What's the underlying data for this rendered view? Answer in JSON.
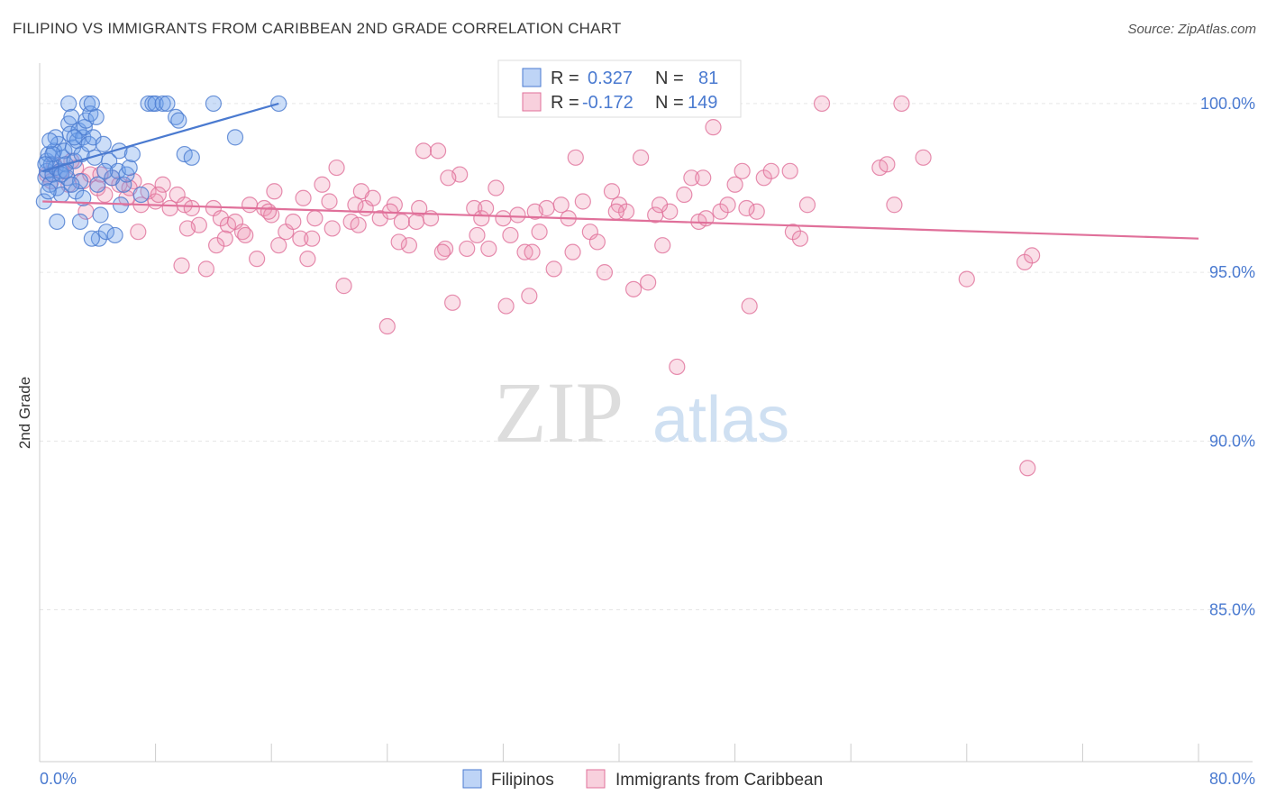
{
  "title": "FILIPINO VS IMMIGRANTS FROM CARIBBEAN 2ND GRADE CORRELATION CHART",
  "source": "Source: ZipAtlas.com",
  "watermark": {
    "zip": "ZIP",
    "atlas": "atlas"
  },
  "legend": {
    "rows": [
      {
        "r_label": "R =",
        "r_value": "0.327",
        "n_label": "N =",
        "n_value": "81",
        "color": "#4a7ad0"
      },
      {
        "r_label": "R =",
        "r_value": "-0.172",
        "n_label": "N =",
        "n_value": "149",
        "color": "#e0709a"
      }
    ]
  },
  "bottom_legend": [
    "Filipinos",
    "Immigrants from Caribbean"
  ],
  "chart_data": {
    "type": "scatter",
    "title": "FILIPINO VS IMMIGRANTS FROM CARIBBEAN 2ND GRADE CORRELATION CHART",
    "xlabel": "",
    "ylabel": "2nd Grade",
    "xlim": [
      0,
      80
    ],
    "ylim": [
      80.5,
      101.2
    ],
    "x_tick_labels": [
      "0.0%",
      "80.0%"
    ],
    "y_ticks": [
      100,
      95,
      90,
      85
    ],
    "y_tick_labels": [
      "100.0%",
      "95.0%",
      "90.0%",
      "85.0%"
    ],
    "grid": true,
    "legend_position": "top-center",
    "series": [
      {
        "name": "Filipinos",
        "color": "#4a7ad0",
        "fill": "rgba(110,160,235,0.35)",
        "trend": {
          "x": [
            0.2,
            16.5
          ],
          "y": [
            98.0,
            100.0
          ]
        },
        "points": [
          [
            0.3,
            97.1
          ],
          [
            0.4,
            97.8
          ],
          [
            0.5,
            98.3
          ],
          [
            0.5,
            98.0
          ],
          [
            0.6,
            98.5
          ],
          [
            0.7,
            97.6
          ],
          [
            0.8,
            98.2
          ],
          [
            0.9,
            97.9
          ],
          [
            1.0,
            98.6
          ],
          [
            1.1,
            98.1
          ],
          [
            1.2,
            97.5
          ],
          [
            1.3,
            98.8
          ],
          [
            1.4,
            98.0
          ],
          [
            1.5,
            97.3
          ],
          [
            1.6,
            98.4
          ],
          [
            1.7,
            98.6
          ],
          [
            1.8,
            98.2
          ],
          [
            1.9,
            97.8
          ],
          [
            2.0,
            99.4
          ],
          [
            2.0,
            100.0
          ],
          [
            2.1,
            99.1
          ],
          [
            2.2,
            99.6
          ],
          [
            2.3,
            98.7
          ],
          [
            2.4,
            98.3
          ],
          [
            2.5,
            97.4
          ],
          [
            2.6,
            98.9
          ],
          [
            2.7,
            99.2
          ],
          [
            2.8,
            97.7
          ],
          [
            2.9,
            98.5
          ],
          [
            3.0,
            99.0
          ],
          [
            3.1,
            99.3
          ],
          [
            3.2,
            99.5
          ],
          [
            3.3,
            100.0
          ],
          [
            3.4,
            98.8
          ],
          [
            3.5,
            99.7
          ],
          [
            3.6,
            100.0
          ],
          [
            3.7,
            99.0
          ],
          [
            3.8,
            98.4
          ],
          [
            3.9,
            99.6
          ],
          [
            4.0,
            97.6
          ],
          [
            4.1,
            96.0
          ],
          [
            4.2,
            96.7
          ],
          [
            4.4,
            98.8
          ],
          [
            4.6,
            96.2
          ],
          [
            4.8,
            98.3
          ],
          [
            5.0,
            97.8
          ],
          [
            5.2,
            96.1
          ],
          [
            5.4,
            98.0
          ],
          [
            5.5,
            98.6
          ],
          [
            5.6,
            97.0
          ],
          [
            5.8,
            97.6
          ],
          [
            6.0,
            97.9
          ],
          [
            6.2,
            98.1
          ],
          [
            6.4,
            98.5
          ],
          [
            7.0,
            97.3
          ],
          [
            7.5,
            100.0
          ],
          [
            7.8,
            100.0
          ],
          [
            8.0,
            100.0
          ],
          [
            8.5,
            100.0
          ],
          [
            8.8,
            100.0
          ],
          [
            9.4,
            99.6
          ],
          [
            9.6,
            99.5
          ],
          [
            10.0,
            98.5
          ],
          [
            10.5,
            98.4
          ],
          [
            12.0,
            100.0
          ],
          [
            13.5,
            99.0
          ],
          [
            16.5,
            100.0
          ],
          [
            1.2,
            96.5
          ],
          [
            2.8,
            96.5
          ],
          [
            3.6,
            96.0
          ],
          [
            0.6,
            97.4
          ],
          [
            1.5,
            97.9
          ],
          [
            2.2,
            97.6
          ],
          [
            0.9,
            98.5
          ],
          [
            1.8,
            98.0
          ],
          [
            0.4,
            98.2
          ],
          [
            3.0,
            97.2
          ],
          [
            4.5,
            98.0
          ],
          [
            2.4,
            99.0
          ],
          [
            1.1,
            99.0
          ],
          [
            0.7,
            98.9
          ]
        ]
      },
      {
        "name": "Immigrants from Caribbean",
        "color": "#e0709a",
        "fill": "rgba(240,150,180,0.3)",
        "trend": {
          "x": [
            0.2,
            80.0
          ],
          "y": [
            97.1,
            96.0
          ]
        },
        "points": [
          [
            0.5,
            97.9
          ],
          [
            0.8,
            97.7
          ],
          [
            1.0,
            98.2
          ],
          [
            1.5,
            98.0
          ],
          [
            2.0,
            97.6
          ],
          [
            2.5,
            98.1
          ],
          [
            3.0,
            97.7
          ],
          [
            3.5,
            97.9
          ],
          [
            4.0,
            97.5
          ],
          [
            4.5,
            97.3
          ],
          [
            5.0,
            97.8
          ],
          [
            5.5,
            97.6
          ],
          [
            6.0,
            97.2
          ],
          [
            6.5,
            97.7
          ],
          [
            7.0,
            97.0
          ],
          [
            7.5,
            97.4
          ],
          [
            8.0,
            97.1
          ],
          [
            8.5,
            97.6
          ],
          [
            9.0,
            96.9
          ],
          [
            9.5,
            97.3
          ],
          [
            10.0,
            97.0
          ],
          [
            10.5,
            96.9
          ],
          [
            11.0,
            96.4
          ],
          [
            11.5,
            95.1
          ],
          [
            12.0,
            96.9
          ],
          [
            12.5,
            96.6
          ],
          [
            13.0,
            96.4
          ],
          [
            13.5,
            96.5
          ],
          [
            14.0,
            96.2
          ],
          [
            14.5,
            97.0
          ],
          [
            15.0,
            95.4
          ],
          [
            15.5,
            96.9
          ],
          [
            16.0,
            96.7
          ],
          [
            16.5,
            95.8
          ],
          [
            17.0,
            96.2
          ],
          [
            17.5,
            96.5
          ],
          [
            18.0,
            96.0
          ],
          [
            18.5,
            95.4
          ],
          [
            19.0,
            96.6
          ],
          [
            19.5,
            97.6
          ],
          [
            20.0,
            97.1
          ],
          [
            20.5,
            98.1
          ],
          [
            21.0,
            94.6
          ],
          [
            21.5,
            96.5
          ],
          [
            22.0,
            96.4
          ],
          [
            22.5,
            96.9
          ],
          [
            23.0,
            97.2
          ],
          [
            23.5,
            96.6
          ],
          [
            24.0,
            93.4
          ],
          [
            24.5,
            97.0
          ],
          [
            25.0,
            96.5
          ],
          [
            25.5,
            95.8
          ],
          [
            26.0,
            96.5
          ],
          [
            26.5,
            98.6
          ],
          [
            27.0,
            96.6
          ],
          [
            27.5,
            98.6
          ],
          [
            28.0,
            95.7
          ],
          [
            28.5,
            94.1
          ],
          [
            29.0,
            97.9
          ],
          [
            29.5,
            95.7
          ],
          [
            30.0,
            96.9
          ],
          [
            30.5,
            96.6
          ],
          [
            31.0,
            95.7
          ],
          [
            31.5,
            97.5
          ],
          [
            32.0,
            96.6
          ],
          [
            32.5,
            96.1
          ],
          [
            33.0,
            96.7
          ],
          [
            33.5,
            95.6
          ],
          [
            34.0,
            95.6
          ],
          [
            34.5,
            96.2
          ],
          [
            35.0,
            96.9
          ],
          [
            35.5,
            95.1
          ],
          [
            36.0,
            97.0
          ],
          [
            36.5,
            96.6
          ],
          [
            37.0,
            98.4
          ],
          [
            37.5,
            97.1
          ],
          [
            38.0,
            96.2
          ],
          [
            38.5,
            95.9
          ],
          [
            39.0,
            95.0
          ],
          [
            39.5,
            97.4
          ],
          [
            40.0,
            97.0
          ],
          [
            40.5,
            96.8
          ],
          [
            41.0,
            94.5
          ],
          [
            41.5,
            98.4
          ],
          [
            42.0,
            94.7
          ],
          [
            42.5,
            96.7
          ],
          [
            43.0,
            95.8
          ],
          [
            43.5,
            96.8
          ],
          [
            44.0,
            92.2
          ],
          [
            44.5,
            97.3
          ],
          [
            45.0,
            97.8
          ],
          [
            45.5,
            96.5
          ],
          [
            46.0,
            96.6
          ],
          [
            46.5,
            99.3
          ],
          [
            47.0,
            96.8
          ],
          [
            47.5,
            97.0
          ],
          [
            48.0,
            97.6
          ],
          [
            48.5,
            98.0
          ],
          [
            49.0,
            94.0
          ],
          [
            49.5,
            96.8
          ],
          [
            50.0,
            97.8
          ],
          [
            50.5,
            98.0
          ],
          [
            52.0,
            96.2
          ],
          [
            52.5,
            96.0
          ],
          [
            53.0,
            97.0
          ],
          [
            54.0,
            100.0
          ],
          [
            58.0,
            98.1
          ],
          [
            58.5,
            98.2
          ],
          [
            59.0,
            97.0
          ],
          [
            59.5,
            100.0
          ],
          [
            61.0,
            98.4
          ],
          [
            64.0,
            94.8
          ],
          [
            68.0,
            95.3
          ],
          [
            68.5,
            95.5
          ],
          [
            68.2,
            89.2
          ],
          [
            3.2,
            96.8
          ],
          [
            6.8,
            96.2
          ],
          [
            9.8,
            95.2
          ],
          [
            12.8,
            96.0
          ],
          [
            15.8,
            96.8
          ],
          [
            18.8,
            96.0
          ],
          [
            21.8,
            97.0
          ],
          [
            24.8,
            95.9
          ],
          [
            27.8,
            95.6
          ],
          [
            30.8,
            96.9
          ],
          [
            33.8,
            94.3
          ],
          [
            36.8,
            95.6
          ],
          [
            39.8,
            96.8
          ],
          [
            42.8,
            97.0
          ],
          [
            45.8,
            97.8
          ],
          [
            48.8,
            96.9
          ],
          [
            51.8,
            98.0
          ],
          [
            2.2,
            98.3
          ],
          [
            4.2,
            97.9
          ],
          [
            6.2,
            97.5
          ],
          [
            8.2,
            97.3
          ],
          [
            10.2,
            96.3
          ],
          [
            12.2,
            95.8
          ],
          [
            14.2,
            96.1
          ],
          [
            16.2,
            97.4
          ],
          [
            18.2,
            97.2
          ],
          [
            20.2,
            96.3
          ],
          [
            22.2,
            97.4
          ],
          [
            24.2,
            96.8
          ],
          [
            26.2,
            96.9
          ],
          [
            28.2,
            97.8
          ],
          [
            30.2,
            96.1
          ],
          [
            32.2,
            94.0
          ],
          [
            34.2,
            96.8
          ]
        ]
      }
    ]
  }
}
